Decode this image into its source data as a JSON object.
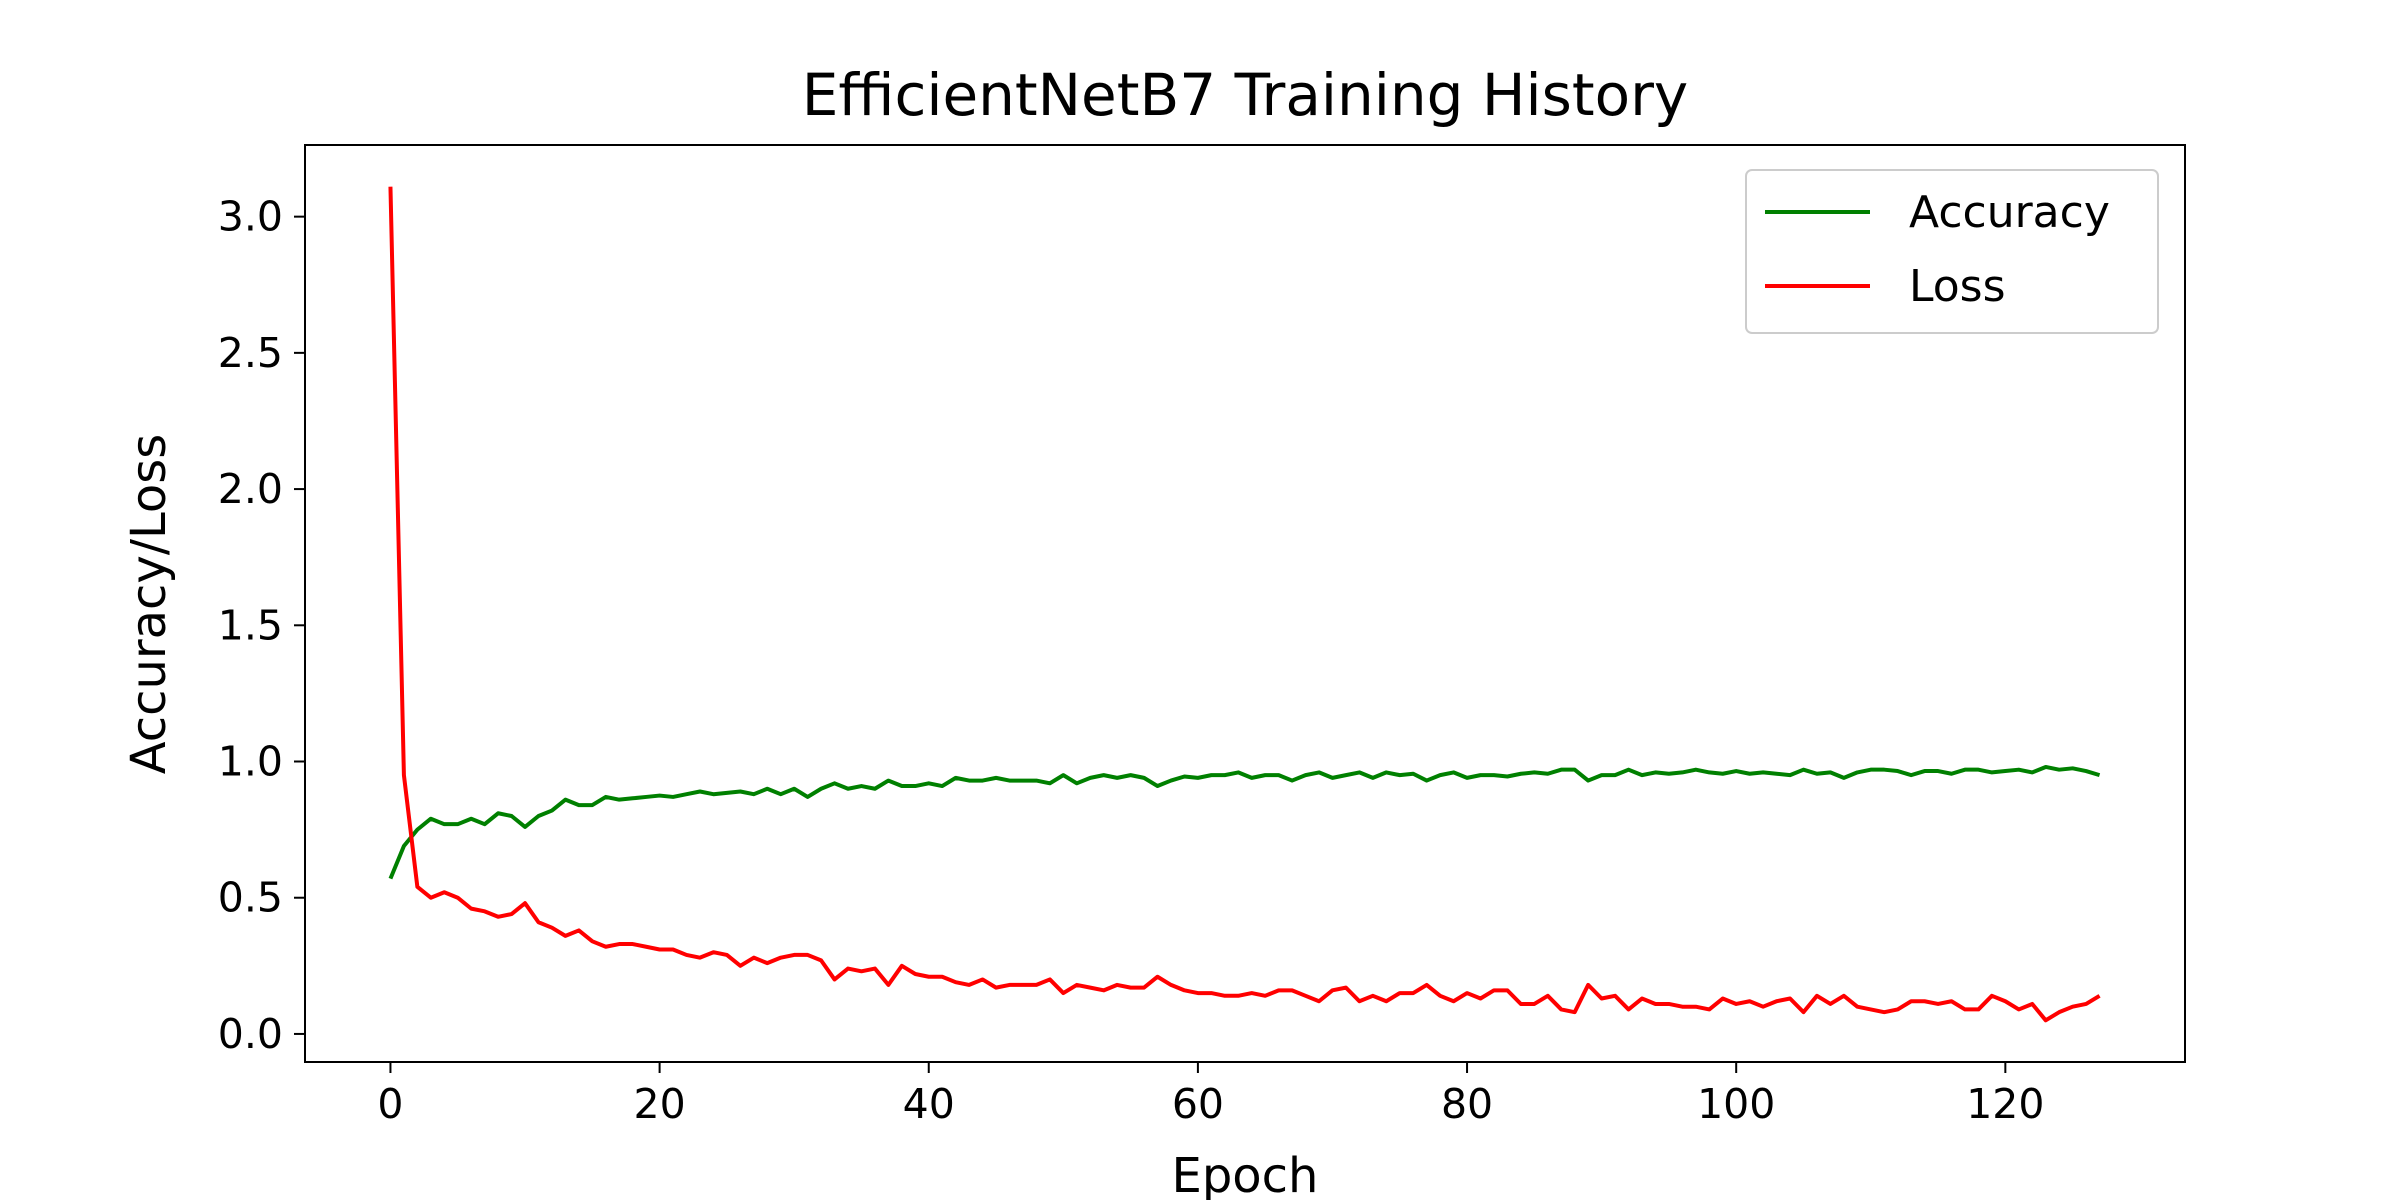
{
  "chart_data": {
    "type": "line",
    "title": "EfficientNetB7 Training History",
    "xlabel": "Epoch",
    "ylabel": "Accuracy/Loss",
    "x": [
      0,
      1,
      2,
      3,
      4,
      5,
      6,
      7,
      8,
      9,
      10,
      11,
      12,
      13,
      14,
      15,
      16,
      17,
      18,
      19,
      20,
      21,
      22,
      23,
      24,
      25,
      26,
      27,
      28,
      29,
      30,
      31,
      32,
      33,
      34,
      35,
      36,
      37,
      38,
      39,
      40,
      41,
      42,
      43,
      44,
      45,
      46,
      47,
      48,
      49,
      50,
      51,
      52,
      53,
      54,
      55,
      56,
      57,
      58,
      59,
      60,
      61,
      62,
      63,
      64,
      65,
      66,
      67,
      68,
      69,
      70,
      71,
      72,
      73,
      74,
      75,
      76,
      77,
      78,
      79,
      80,
      81,
      82,
      83,
      84,
      85,
      86,
      87,
      88,
      89,
      90,
      91,
      92,
      93,
      94,
      95,
      96,
      97,
      98,
      99,
      100,
      101,
      102,
      103,
      104,
      105,
      106,
      107,
      108,
      109,
      110,
      111,
      112,
      113,
      114,
      115,
      116,
      117,
      118,
      119,
      120,
      121,
      122,
      123,
      124,
      125,
      126,
      127
    ],
    "series": [
      {
        "name": "Accuracy",
        "color": "#008000",
        "values": [
          0.57,
          0.69,
          0.75,
          0.79,
          0.77,
          0.77,
          0.79,
          0.77,
          0.81,
          0.8,
          0.76,
          0.8,
          0.82,
          0.86,
          0.84,
          0.84,
          0.87,
          0.86,
          0.865,
          0.87,
          0.875,
          0.87,
          0.88,
          0.89,
          0.88,
          0.885,
          0.89,
          0.88,
          0.9,
          0.88,
          0.9,
          0.87,
          0.9,
          0.92,
          0.9,
          0.91,
          0.9,
          0.93,
          0.91,
          0.91,
          0.92,
          0.91,
          0.94,
          0.93,
          0.93,
          0.94,
          0.93,
          0.93,
          0.93,
          0.92,
          0.95,
          0.92,
          0.94,
          0.95,
          0.94,
          0.95,
          0.94,
          0.91,
          0.93,
          0.945,
          0.94,
          0.95,
          0.95,
          0.96,
          0.94,
          0.95,
          0.95,
          0.93,
          0.95,
          0.96,
          0.94,
          0.95,
          0.96,
          0.94,
          0.96,
          0.95,
          0.955,
          0.93,
          0.95,
          0.96,
          0.94,
          0.95,
          0.95,
          0.945,
          0.955,
          0.96,
          0.955,
          0.97,
          0.97,
          0.93,
          0.95,
          0.95,
          0.97,
          0.95,
          0.96,
          0.955,
          0.96,
          0.97,
          0.96,
          0.955,
          0.965,
          0.955,
          0.96,
          0.955,
          0.95,
          0.97,
          0.955,
          0.96,
          0.94,
          0.96,
          0.97,
          0.97,
          0.965,
          0.95,
          0.965,
          0.965,
          0.955,
          0.97,
          0.97,
          0.96,
          0.965,
          0.97,
          0.96,
          0.98,
          0.97,
          0.975,
          0.965,
          0.95
        ]
      },
      {
        "name": "Loss",
        "color": "#ff0000",
        "values": [
          3.11,
          0.95,
          0.54,
          0.5,
          0.52,
          0.5,
          0.46,
          0.45,
          0.43,
          0.44,
          0.48,
          0.41,
          0.39,
          0.36,
          0.38,
          0.34,
          0.32,
          0.33,
          0.33,
          0.32,
          0.31,
          0.31,
          0.29,
          0.28,
          0.3,
          0.29,
          0.25,
          0.28,
          0.26,
          0.28,
          0.29,
          0.29,
          0.27,
          0.2,
          0.24,
          0.23,
          0.24,
          0.18,
          0.25,
          0.22,
          0.21,
          0.21,
          0.19,
          0.18,
          0.2,
          0.17,
          0.18,
          0.18,
          0.18,
          0.2,
          0.15,
          0.18,
          0.17,
          0.16,
          0.18,
          0.17,
          0.17,
          0.21,
          0.18,
          0.16,
          0.15,
          0.15,
          0.14,
          0.14,
          0.15,
          0.14,
          0.16,
          0.16,
          0.14,
          0.12,
          0.16,
          0.17,
          0.12,
          0.14,
          0.12,
          0.15,
          0.15,
          0.18,
          0.14,
          0.12,
          0.15,
          0.13,
          0.16,
          0.16,
          0.11,
          0.11,
          0.14,
          0.09,
          0.08,
          0.18,
          0.13,
          0.14,
          0.09,
          0.13,
          0.11,
          0.11,
          0.1,
          0.1,
          0.09,
          0.13,
          0.11,
          0.12,
          0.1,
          0.12,
          0.13,
          0.08,
          0.14,
          0.11,
          0.14,
          0.1,
          0.09,
          0.08,
          0.09,
          0.12,
          0.12,
          0.11,
          0.12,
          0.09,
          0.09,
          0.14,
          0.12,
          0.09,
          0.11,
          0.05,
          0.08,
          0.1,
          0.11,
          0.14
        ]
      }
    ],
    "xlim": [
      -6.35,
      133.35
    ],
    "ylim": [
      -0.103,
      3.263
    ],
    "xticks": [
      0,
      20,
      40,
      60,
      80,
      100,
      120
    ],
    "yticks": [
      {
        "value": 0,
        "label": "0.0"
      },
      0.5,
      {
        "value": 1,
        "label": "1.0"
      },
      1.5,
      {
        "value": 2,
        "label": "2.0"
      },
      2.5,
      {
        "value": 3,
        "label": "3.0"
      }
    ],
    "legend": "upper right"
  }
}
